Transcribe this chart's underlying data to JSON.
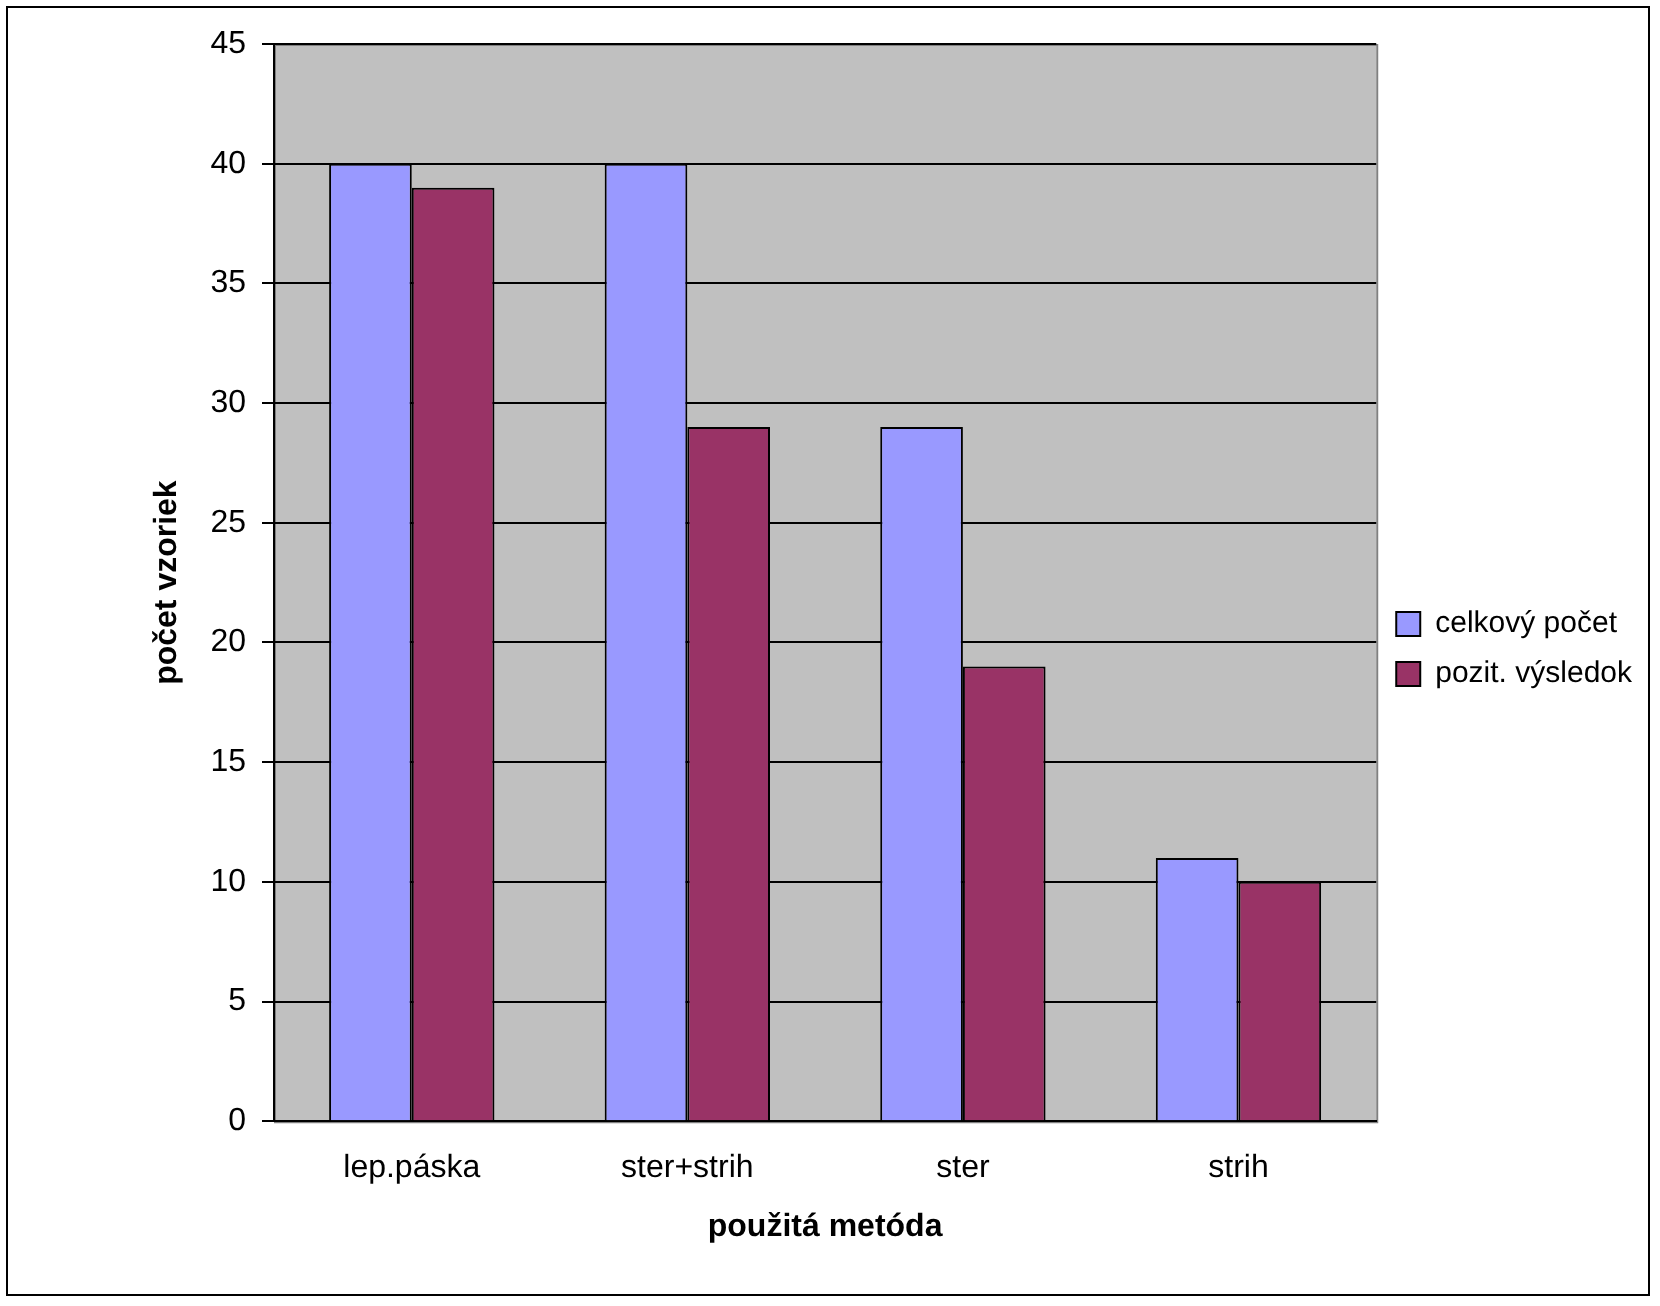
{
  "chart_data": {
    "type": "bar",
    "xlabel": "použitá metóda",
    "ylabel": "počet vzoriek",
    "categories": [
      "lep.páska",
      "ster+strih",
      "ster",
      "strih"
    ],
    "series": [
      {
        "name": "celkový počet",
        "color": "#9999ff",
        "values": [
          40,
          40,
          29,
          11
        ]
      },
      {
        "name": "pozit. výsledok",
        "color": "#993366",
        "values": [
          39,
          29,
          19,
          10
        ]
      }
    ],
    "ylim": [
      0,
      45
    ],
    "yticks": [
      0,
      5,
      10,
      15,
      20,
      25,
      30,
      35,
      40,
      45
    ],
    "grid": "y",
    "legend": "right"
  }
}
